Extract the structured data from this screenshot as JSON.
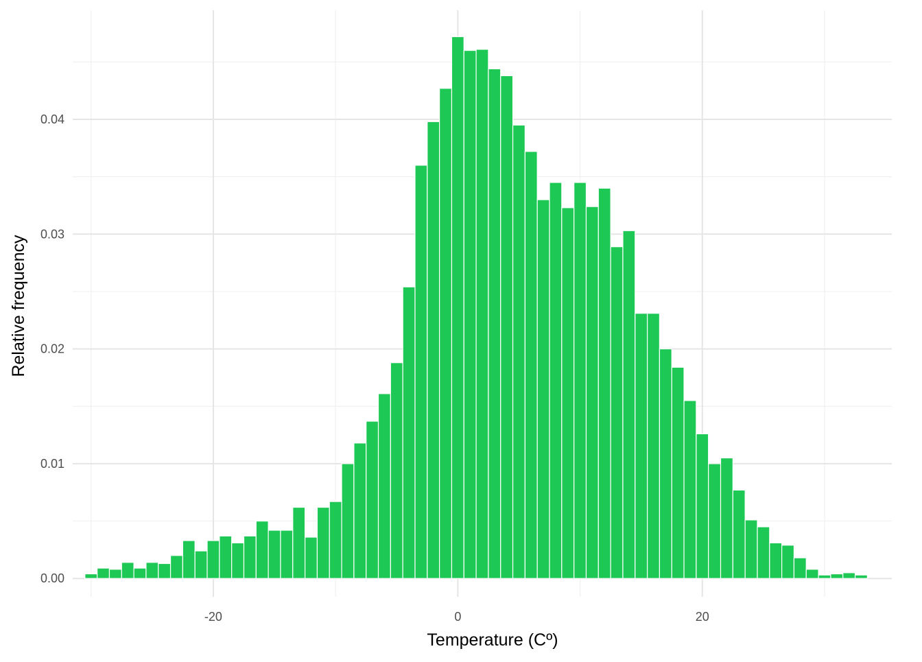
{
  "chart_data": {
    "type": "bar",
    "title": "",
    "xlabel": "Temperature (Cº)",
    "ylabel": "Relative frequency",
    "bar_color": "#1DC954",
    "grid": true,
    "xlim": [
      -31.5,
      35.5
    ],
    "ylim": [
      -0.0016,
      0.0495
    ],
    "x_ticks": [
      {
        "value": -20,
        "label": "-20"
      },
      {
        "value": 0,
        "label": "0"
      },
      {
        "value": 20,
        "label": "20"
      }
    ],
    "x_minor_ticks": [
      -30,
      -10,
      10,
      30
    ],
    "y_ticks": [
      {
        "value": 0.0,
        "label": "0.00"
      },
      {
        "value": 0.01,
        "label": "0.01"
      },
      {
        "value": 0.02,
        "label": "0.02"
      },
      {
        "value": 0.03,
        "label": "0.03"
      },
      {
        "value": 0.04,
        "label": "0.04"
      }
    ],
    "y_minor_ticks": [
      0.005,
      0.015,
      0.025,
      0.035,
      0.045
    ],
    "bin_width": 1,
    "x": [
      -30,
      -29,
      -28,
      -27,
      -26,
      -25,
      -24,
      -23,
      -22,
      -21,
      -20,
      -19,
      -18,
      -17,
      -16,
      -15,
      -14,
      -13,
      -12,
      -11,
      -10,
      -9,
      -8,
      -7,
      -6,
      -5,
      -4,
      -3,
      -2,
      -1,
      0,
      1,
      2,
      3,
      4,
      5,
      6,
      7,
      8,
      9,
      10,
      11,
      12,
      13,
      14,
      15,
      16,
      17,
      18,
      19,
      20,
      21,
      22,
      23,
      24,
      25,
      26,
      27,
      28,
      29,
      30,
      31,
      32,
      33
    ],
    "values": [
      0.0004,
      0.0009,
      0.0008,
      0.0014,
      0.0009,
      0.0014,
      0.0013,
      0.002,
      0.0033,
      0.0024,
      0.0033,
      0.0037,
      0.0031,
      0.0037,
      0.005,
      0.0042,
      0.0042,
      0.0062,
      0.0036,
      0.0062,
      0.0067,
      0.01,
      0.0118,
      0.0137,
      0.0161,
      0.0188,
      0.0254,
      0.036,
      0.0398,
      0.0427,
      0.0472,
      0.046,
      0.0461,
      0.0444,
      0.0438,
      0.0395,
      0.0372,
      0.033,
      0.0345,
      0.0323,
      0.0345,
      0.0324,
      0.034,
      0.0289,
      0.0303,
      0.0231,
      0.0231,
      0.02,
      0.0184,
      0.0155,
      0.0126,
      0.01,
      0.0105,
      0.0077,
      0.0051,
      0.0045,
      0.0031,
      0.0029,
      0.0018,
      0.0008,
      0.0003,
      0.0004,
      0.0005,
      0.0003
    ]
  }
}
